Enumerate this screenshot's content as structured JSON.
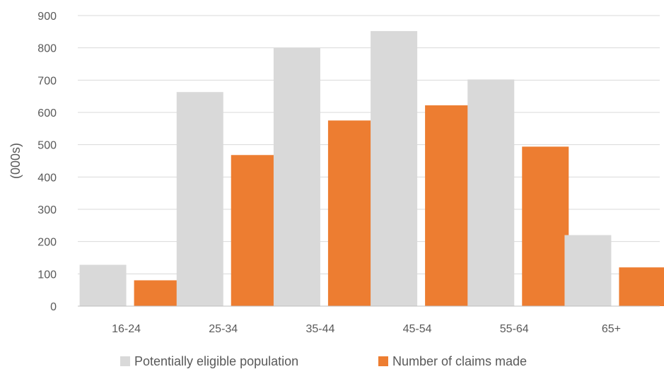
{
  "chart_data": {
    "type": "bar",
    "title": "",
    "xlabel": "",
    "ylabel": "(000s)",
    "ylim": [
      0,
      900
    ],
    "yticks": [
      0,
      100,
      200,
      300,
      400,
      500,
      600,
      700,
      800,
      900
    ],
    "grid": true,
    "legend_position": "bottom",
    "categories": [
      "16-24",
      "25-34",
      "35-44",
      "45-54",
      "55-64",
      "65+"
    ],
    "series": [
      {
        "name": "Potentially eligible population",
        "color": "#d9d9d9",
        "values": [
          128,
          663,
          800,
          852,
          702,
          220
        ]
      },
      {
        "name": "Number of claims made",
        "color": "#ed7d31",
        "values": [
          80,
          468,
          575,
          622,
          494,
          120
        ]
      }
    ]
  }
}
